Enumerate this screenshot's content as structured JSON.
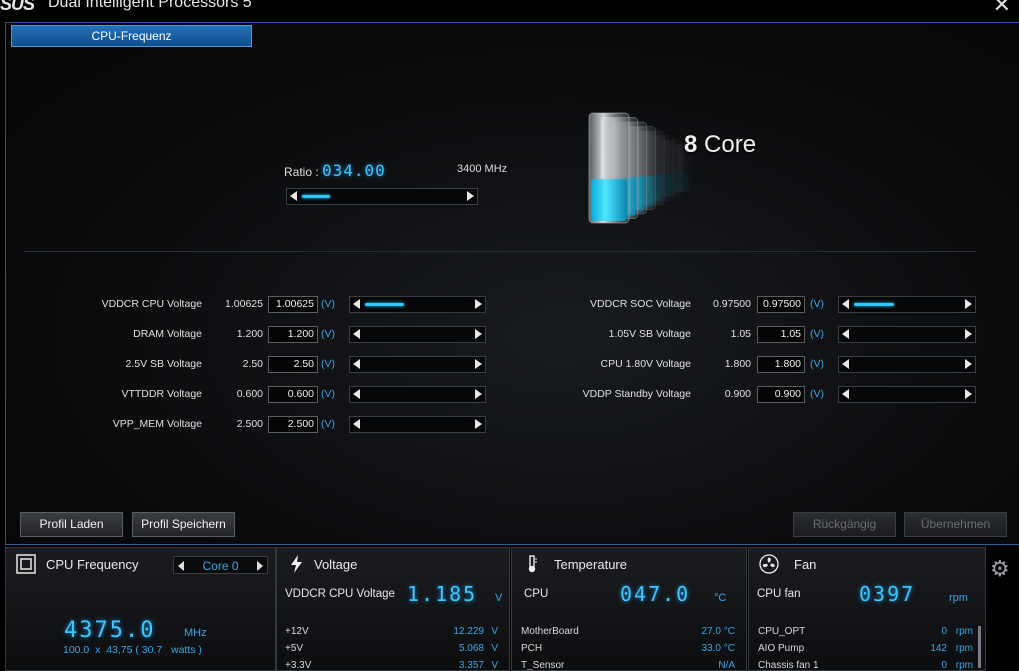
{
  "window": {
    "logo": "SUS",
    "title": "Dual Intelligent Processors 5",
    "close_symbol": "✕"
  },
  "tab": {
    "label": "CPU-Frequenz"
  },
  "ratio": {
    "label": "Ratio : ",
    "value": "034.00",
    "mhz": "3400 MHz",
    "level": 0.18
  },
  "core": {
    "number": "8",
    "word": " Core",
    "bars": 8
  },
  "voltages_left": [
    {
      "name": "VDDCR CPU Voltage",
      "current": "1.00625",
      "value": "1.00625",
      "unit": "(V)",
      "level": 0.38
    },
    {
      "name": "DRAM Voltage",
      "current": "1.200",
      "value": "1.200",
      "unit": "(V)",
      "level": 0
    },
    {
      "name": "2.5V SB Voltage",
      "current": "2.50",
      "value": "2.50",
      "unit": "(V)",
      "level": 0
    },
    {
      "name": "VTTDDR Voltage",
      "current": "0.600",
      "value": "0.600",
      "unit": "(V)",
      "level": 0
    },
    {
      "name": "VPP_MEM Voltage",
      "current": "2.500",
      "value": "2.500",
      "unit": "(V)",
      "level": 0
    }
  ],
  "voltages_right": [
    {
      "name": "VDDCR SOC Voltage",
      "current": "0.97500",
      "value": "0.97500",
      "unit": "(V)",
      "level": 0.38
    },
    {
      "name": "1.05V SB Voltage",
      "current": "1.05",
      "value": "1.05",
      "unit": "(V)",
      "level": 0
    },
    {
      "name": "CPU 1.80V Voltage",
      "current": "1.800",
      "value": "1.800",
      "unit": "(V)",
      "level": 0
    },
    {
      "name": "VDDP Standby Voltage",
      "current": "0.900",
      "value": "0.900",
      "unit": "(V)",
      "level": 0
    }
  ],
  "buttons": {
    "load_profile": "Profil Laden",
    "save_profile": "Profil Speichern",
    "undo": "Rückgängig",
    "apply": "Übernehmen"
  },
  "cpu_panel": {
    "title": "CPU Frequency",
    "core_select": "Core 0",
    "frequency": "4375.0",
    "unit": "MHz",
    "detail": "100.0  x  43,75 ( 30.7   watts )"
  },
  "voltage_panel": {
    "title": "Voltage",
    "main_label": "VDDCR CPU Voltage",
    "main_value": "1.185",
    "main_unit": "V",
    "rows": [
      {
        "label": "+12V",
        "value": "12.229",
        "unit": "V"
      },
      {
        "label": "+5V",
        "value": "5.068",
        "unit": "V"
      },
      {
        "label": "+3.3V",
        "value": "3.357",
        "unit": "V"
      }
    ]
  },
  "temp_panel": {
    "title": "Temperature",
    "main_label": "CPU",
    "main_value": "047.0",
    "main_unit": "°C",
    "rows": [
      {
        "label": "MotherBoard",
        "value": "27.0 °C"
      },
      {
        "label": "PCH",
        "value": "33.0 °C"
      },
      {
        "label": "T_Sensor",
        "value": "N/A"
      }
    ]
  },
  "fan_panel": {
    "title": "Fan",
    "main_label": "CPU fan",
    "main_value": "0397",
    "main_unit": "rpm",
    "rows": [
      {
        "label": "CPU_OPT",
        "value": "0",
        "unit": "rpm"
      },
      {
        "label": "AIO Pump",
        "value": "142",
        "unit": "rpm"
      },
      {
        "label": "Chassis fan 1",
        "value": "0",
        "unit": "rpm"
      }
    ]
  },
  "colors": {
    "accent": "#3ec6ff",
    "unit_blue": "#3aa7e6",
    "tab_blue": "#1a5fa6"
  }
}
